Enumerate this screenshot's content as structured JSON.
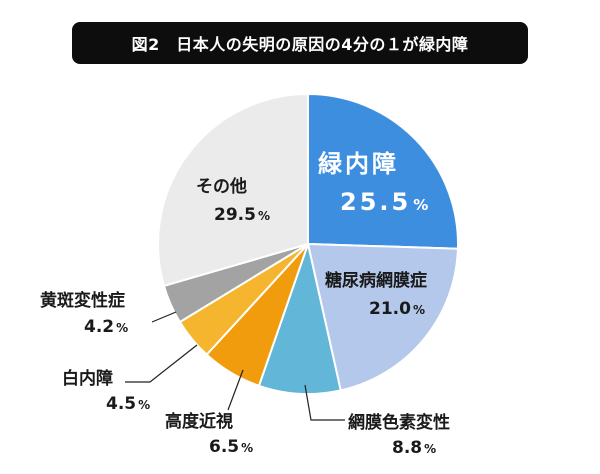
{
  "title": "図2　日本人の失明の原因の4分の１が緑内障",
  "chart_data": {
    "type": "pie",
    "title": "図2　日本人の失明の原因の4分の１が緑内障",
    "start_angle_deg": 0,
    "direction": "clockwise",
    "slices": [
      {
        "label": "緑内障",
        "value": 25.5,
        "value_text": "25.5",
        "unit": "%",
        "color": "#3e8ee0"
      },
      {
        "label": "糖尿病網膜症",
        "value": 21.0,
        "value_text": "21.0",
        "unit": "%",
        "color": "#b3c8ea"
      },
      {
        "label": "網膜色素変性",
        "value": 8.8,
        "value_text": "8.8",
        "unit": "%",
        "color": "#62b7d8"
      },
      {
        "label": "高度近視",
        "value": 6.5,
        "value_text": "6.5",
        "unit": "%",
        "color": "#f09c0d"
      },
      {
        "label": "白内障",
        "value": 4.5,
        "value_text": "4.5",
        "unit": "%",
        "color": "#f6b52e"
      },
      {
        "label": "黄斑変性症",
        "value": 4.2,
        "value_text": "4.2",
        "unit": "%",
        "color": "#a3a3a3"
      },
      {
        "label": "その他",
        "value": 29.5,
        "value_text": "29.5",
        "unit": "%",
        "color": "#ebebeb"
      }
    ]
  }
}
